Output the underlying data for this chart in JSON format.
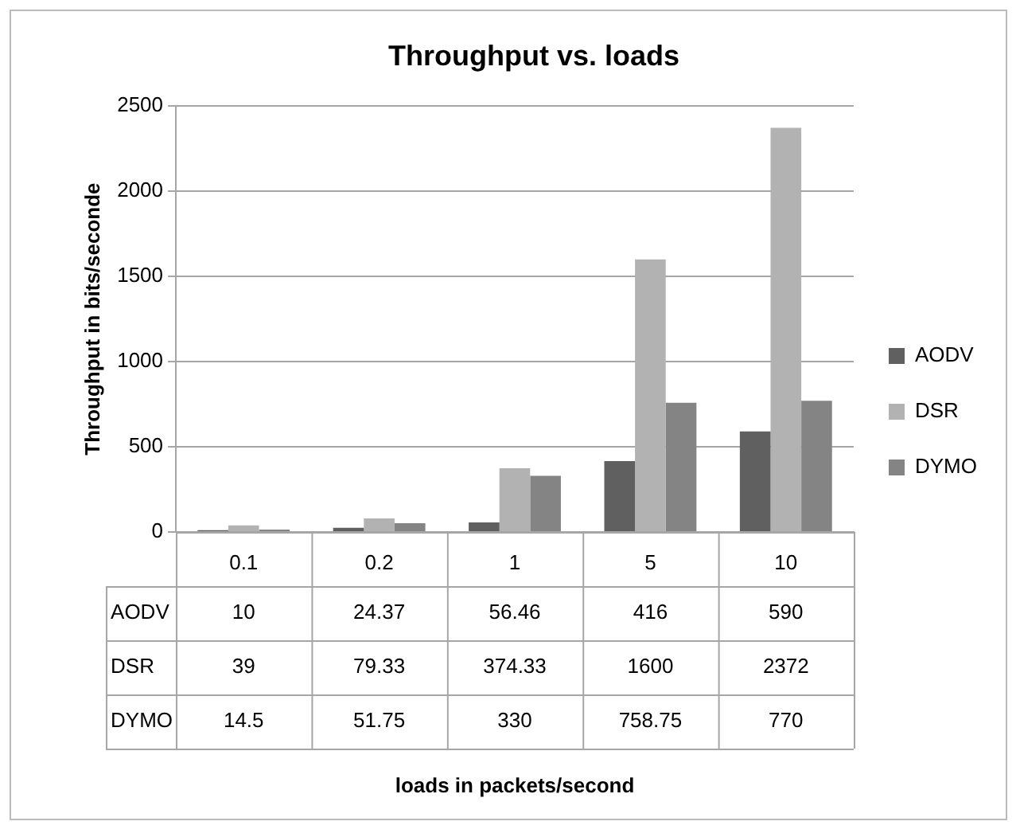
{
  "chart_data": {
    "type": "bar",
    "title": "Throughput vs. loads",
    "annotations": [
      "loads in packets/second"
    ],
    "ylabel": "Throughput in bits/seconde",
    "categories": [
      "0.1",
      "0.2",
      "1",
      "5",
      "10"
    ],
    "series": [
      {
        "name": "AODV",
        "color": "#606060",
        "values": [
          10,
          24.37,
          56.46,
          416,
          590
        ]
      },
      {
        "name": "DSR",
        "color": "#b2b2b2",
        "values": [
          39,
          79.33,
          374.33,
          1600,
          2372
        ]
      },
      {
        "name": "DYMO",
        "color": "#848484",
        "values": [
          14.5,
          51.75,
          330,
          758.75,
          770
        ]
      }
    ],
    "ylim": [
      0,
      2500
    ],
    "yticks": [
      0,
      500,
      1000,
      1500,
      2000,
      2500
    ],
    "grid": "y",
    "legend": "right",
    "data_labels": true
  }
}
